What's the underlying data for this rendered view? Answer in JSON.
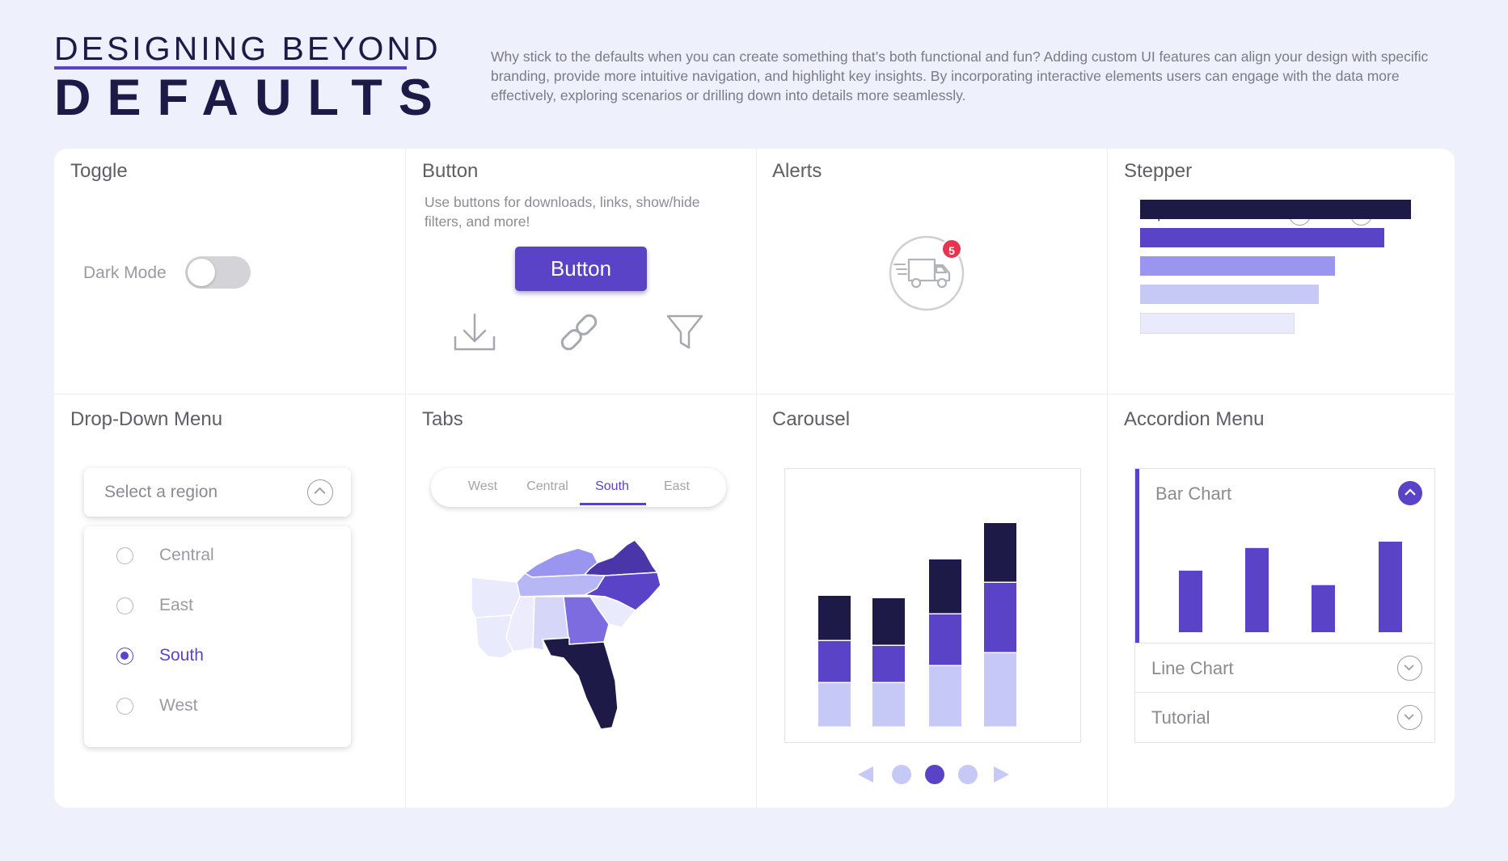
{
  "header": {
    "title_top": "DESIGNING BEYOND",
    "title_main": "DEFAULTS",
    "description": "Why stick to the defaults when you can create something that’s both functional and fun? Adding custom UI features can align your design with specific branding, provide more intuitive navigation, and highlight key insights. By incorporating interactive elements users can engage with the data more effectively, exploring scenarios or drilling down into details more seamlessly."
  },
  "colors": {
    "accent": "#5b43c8",
    "dark": "#1e1a48",
    "mid": "#9a96f0",
    "light": "#c6c8f6",
    "pale": "#e9eafc",
    "badge": "#e8344f"
  },
  "toggle": {
    "title": "Toggle",
    "label": "Dark Mode",
    "on": false
  },
  "button": {
    "title": "Button",
    "description": "Use buttons for downloads, links, show/hide filters, and more!",
    "label": "Button",
    "icons": [
      "download-icon",
      "link-icon",
      "filter-icon"
    ]
  },
  "alerts": {
    "title": "Alerts",
    "count": "5",
    "icon": "delivery-truck-icon"
  },
  "stepper": {
    "title": "Stepper",
    "label": "Top 5 Manufacturers",
    "value": "5",
    "bars": [
      1.0,
      0.9,
      0.72,
      0.66,
      0.57
    ]
  },
  "dropdown": {
    "title": "Drop-Down Menu",
    "placeholder": "Select a region",
    "options": [
      "Central",
      "East",
      "South",
      "West"
    ],
    "selected": "South"
  },
  "tabs": {
    "title": "Tabs",
    "items": [
      "West",
      "Central",
      "South",
      "East"
    ],
    "active": "South"
  },
  "carousel": {
    "title": "Carousel",
    "slides": 3,
    "active_slide": 2,
    "chart_data": {
      "type": "bar",
      "stacked": true,
      "categories": [
        "",
        "",
        "",
        ""
      ],
      "series": [
        {
          "values": [
            55,
            55,
            76,
            92
          ]
        },
        {
          "values": [
            52,
            46,
            64,
            87
          ]
        },
        {
          "values": [
            56,
            59,
            68,
            74
          ]
        }
      ]
    }
  },
  "accordion": {
    "title": "Accordion Menu",
    "items": [
      "Bar Chart",
      "Line Chart",
      "Tutorial"
    ],
    "open": "Bar Chart",
    "chart_data": {
      "type": "bar",
      "categories": [
        "",
        "",
        "",
        ""
      ],
      "values": [
        68,
        93,
        52,
        100
      ]
    }
  }
}
